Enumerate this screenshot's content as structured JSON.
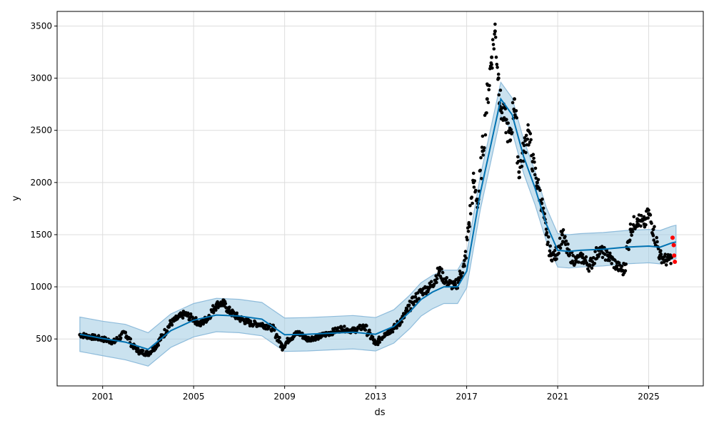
{
  "chart_data": {
    "type": "scatter",
    "title": "",
    "xlabel": "ds",
    "ylabel": "y",
    "xlim": [
      1999.0,
      2027.4
    ],
    "ylim": [
      50,
      3640
    ],
    "xticks": [
      2001,
      2005,
      2009,
      2013,
      2017,
      2021,
      2025
    ],
    "yticks": [
      500,
      1000,
      1500,
      2000,
      2500,
      3000,
      3500
    ],
    "grid": true,
    "colors": {
      "observed": "#000000",
      "forecast_line": "#0072B2",
      "uncertainty_band": "#9ecae1",
      "band_edge": "#8fbcdb",
      "highlight": "#ff0000"
    },
    "series": [
      {
        "role": "observed",
        "x": [
          2000.0,
          2000.5,
          2001.0,
          2001.5,
          2002.0,
          2002.3,
          2002.6,
          2003.0,
          2003.3,
          2003.6,
          2004.0,
          2004.3,
          2004.6,
          2005.0,
          2005.3,
          2005.6,
          2006.0,
          2006.3,
          2006.6,
          2007.0,
          2007.5,
          2008.0,
          2008.5,
          2008.9,
          2009.2,
          2009.6,
          2010.0,
          2010.5,
          2011.0,
          2011.5,
          2012.0,
          2012.5,
          2013.0,
          2013.4,
          2013.8,
          2014.2,
          2014.6,
          2015.0,
          2015.4,
          2015.8,
          2016.1,
          2016.5,
          2016.9,
          2017.1,
          2017.3,
          2017.5,
          2017.7,
          2017.9,
          2018.1,
          2018.25,
          2018.4,
          2018.5,
          2018.7,
          2018.9,
          2019.1,
          2019.3,
          2019.5,
          2019.7,
          2019.9,
          2020.1,
          2020.3,
          2020.5,
          2020.7,
          2020.9,
          2021.2,
          2021.5,
          2021.8,
          2022.1,
          2022.4,
          2022.8,
          2023.2,
          2023.6,
          2023.9,
          2024.2,
          2024.5,
          2024.8,
          2025.0,
          2025.2,
          2025.5,
          2025.8,
          2026.0
        ],
        "y": [
          540,
          520,
          500,
          470,
          560,
          440,
          380,
          360,
          420,
          520,
          650,
          700,
          740,
          690,
          640,
          700,
          830,
          840,
          760,
          700,
          650,
          640,
          600,
          420,
          500,
          560,
          500,
          520,
          560,
          600,
          580,
          620,
          450,
          550,
          600,
          700,
          850,
          950,
          1000,
          1150,
          1050,
          1000,
          1200,
          1600,
          2000,
          1800,
          2300,
          2800,
          3200,
          3450,
          3000,
          2700,
          2600,
          2400,
          2800,
          2100,
          2300,
          2500,
          2200,
          2000,
          1800,
          1500,
          1300,
          1300,
          1500,
          1300,
          1250,
          1280,
          1200,
          1350,
          1300,
          1200,
          1150,
          1550,
          1650,
          1600,
          1700,
          1550,
          1300,
          1250,
          1280
        ]
      },
      {
        "role": "forecast",
        "x": [
          2000.0,
          2001.0,
          2002.0,
          2003.0,
          2004.0,
          2005.0,
          2006.0,
          2007.0,
          2008.0,
          2009.0,
          2010.0,
          2011.0,
          2012.0,
          2013.0,
          2013.8,
          2014.5,
          2015.0,
          2015.5,
          2016.0,
          2016.6,
          2017.0,
          2017.6,
          2018.0,
          2018.5,
          2019.0,
          2019.5,
          2020.0,
          2020.5,
          2021.0,
          2021.5,
          2022.0,
          2023.0,
          2024.0,
          2025.0,
          2025.5,
          2026.0,
          2026.2
        ],
        "y": [
          545,
          505,
          470,
          400,
          580,
          680,
          730,
          720,
          690,
          540,
          545,
          555,
          565,
          545,
          620,
          760,
          880,
          950,
          1000,
          1000,
          1150,
          1900,
          2300,
          2800,
          2650,
          2250,
          1950,
          1600,
          1350,
          1340,
          1350,
          1360,
          1380,
          1390,
          1380,
          1420,
          1430
        ]
      },
      {
        "role": "uncertainty_lower",
        "y": [
          380,
          340,
          300,
          240,
          420,
          520,
          570,
          560,
          530,
          380,
          385,
          395,
          405,
          385,
          460,
          600,
          720,
          790,
          840,
          840,
          990,
          1740,
          2140,
          2640,
          2490,
          2090,
          1790,
          1440,
          1190,
          1180,
          1190,
          1200,
          1220,
          1230,
          1220,
          1260,
          1270
        ]
      },
      {
        "role": "uncertainty_upper",
        "y": [
          710,
          670,
          640,
          560,
          740,
          840,
          890,
          880,
          850,
          700,
          705,
          715,
          725,
          705,
          780,
          920,
          1040,
          1110,
          1160,
          1160,
          1310,
          2060,
          2460,
          2960,
          2810,
          2410,
          2110,
          1760,
          1510,
          1500,
          1510,
          1520,
          1540,
          1550,
          1540,
          1580,
          1590
        ]
      },
      {
        "role": "highlight",
        "x": [
          2026.05,
          2026.1,
          2026.12,
          2026.15
        ],
        "y": [
          1470,
          1400,
          1300,
          1240
        ]
      }
    ]
  }
}
